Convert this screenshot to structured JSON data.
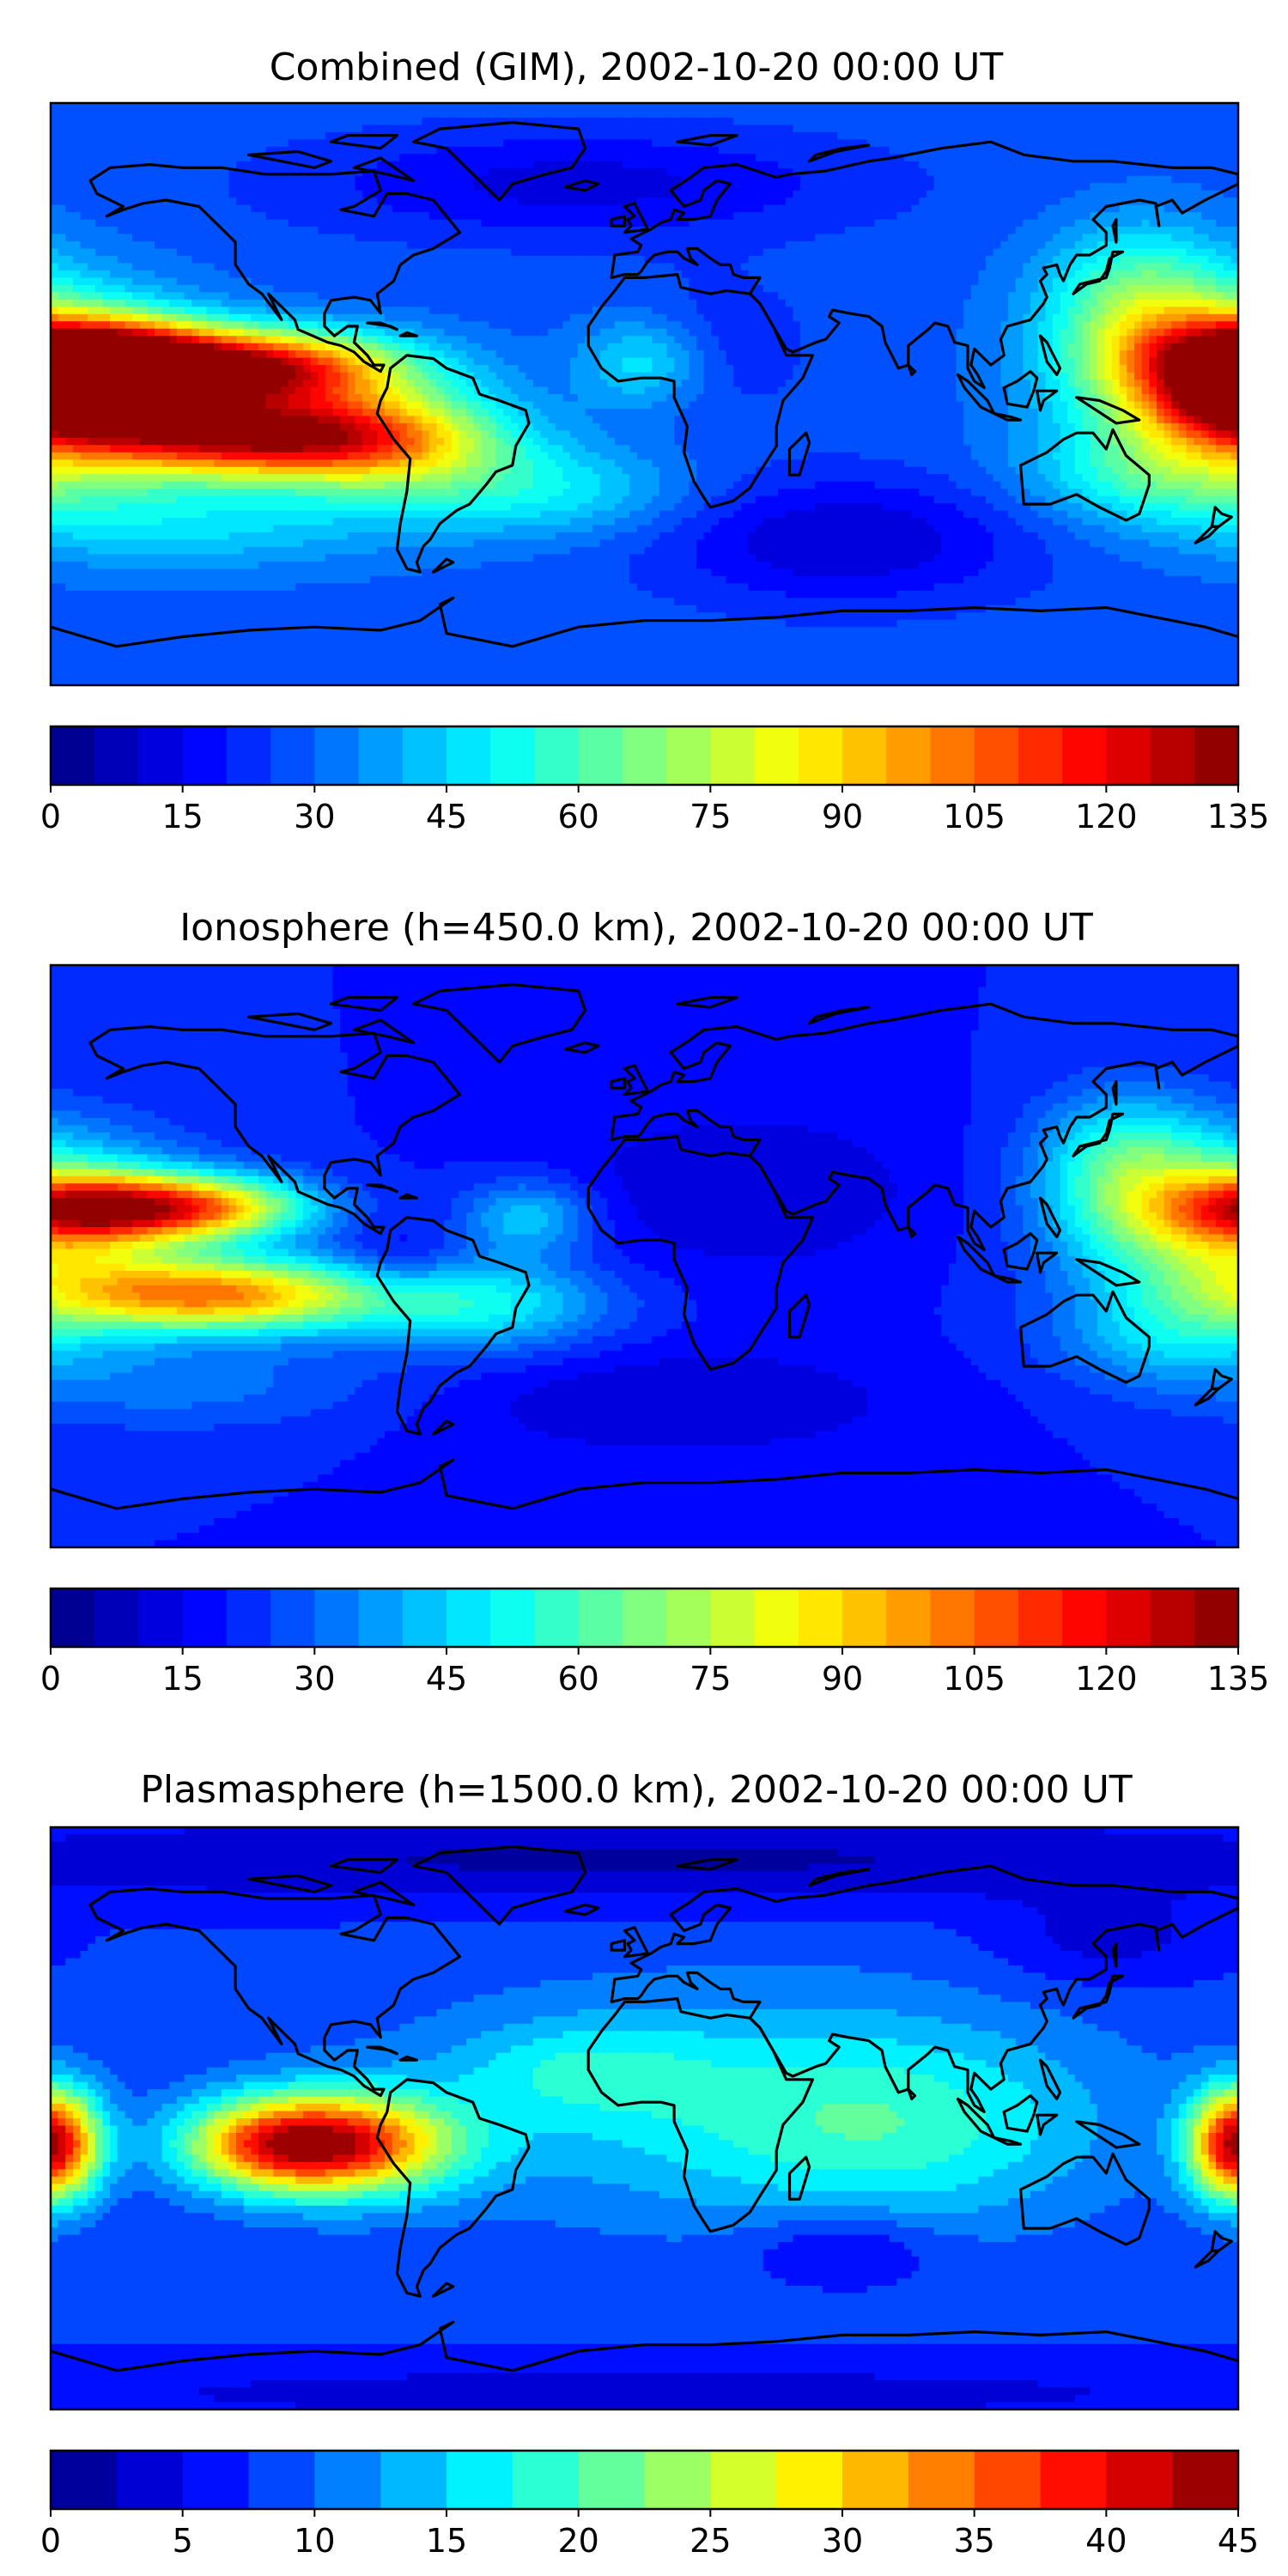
{
  "chart_data": [
    {
      "type": "map",
      "title": "Combined (GIM), 2002-10-20 00:00 UT",
      "projection": "equirectangular",
      "lon_range": [
        -180,
        180
      ],
      "lat_range": [
        -90,
        90
      ],
      "colormap": "jet",
      "colorbar": {
        "min": 0,
        "max": 135,
        "levels": 27,
        "ticks": [
          0,
          15,
          30,
          45,
          60,
          75,
          90,
          105,
          120,
          135
        ],
        "tick_labels": [
          "0",
          "15",
          "30",
          "45",
          "60",
          "75",
          "90",
          "105",
          "120",
          "135"
        ]
      },
      "background_value": 28,
      "features": [
        {
          "lon": -165,
          "lat": 12,
          "amp": 82,
          "slon": 26,
          "slat": 8
        },
        {
          "lon": -115,
          "lat": 8,
          "amp": 88,
          "slon": 30,
          "slat": 8
        },
        {
          "lon": -170,
          "lat": -2,
          "amp": 72,
          "slon": 22,
          "slat": 8
        },
        {
          "lon": -120,
          "lat": -13,
          "amp": 95,
          "slon": 35,
          "slat": 9
        },
        {
          "lon": -75,
          "lat": -15,
          "amp": 40,
          "slon": 26,
          "slat": 12
        },
        {
          "lon": 0,
          "lat": 10,
          "amp": 22,
          "slon": 14,
          "slat": 10
        },
        {
          "lon": 175,
          "lat": 5,
          "amp": 65,
          "slon": 30,
          "slat": 18
        },
        {
          "lon": 150,
          "lat": 30,
          "amp": 30,
          "slon": 20,
          "slat": 16
        },
        {
          "lon": 160,
          "lat": -25,
          "amp": 25,
          "slon": 30,
          "slat": 10
        },
        {
          "lon": -140,
          "lat": -40,
          "amp": 18,
          "slon": 45,
          "slat": 10
        },
        {
          "lon": -30,
          "lat": -30,
          "amp": 20,
          "slon": 30,
          "slat": 10
        },
        {
          "lon": 60,
          "lat": -45,
          "amp": -18,
          "slon": 40,
          "slat": 14
        },
        {
          "lon": -20,
          "lat": 65,
          "amp": -15,
          "slon": 60,
          "slat": 12
        },
        {
          "lon": 20,
          "lat": 15,
          "amp": -8,
          "slon": 20,
          "slat": 15
        }
      ]
    },
    {
      "type": "map",
      "title": "Ionosphere  (h=450.0 km), 2002-10-20 00:00 UT",
      "projection": "equirectangular",
      "lon_range": [
        -180,
        180
      ],
      "lat_range": [
        -90,
        90
      ],
      "colormap": "jet",
      "colorbar": {
        "min": 0,
        "max": 135,
        "levels": 27,
        "ticks": [
          0,
          15,
          30,
          45,
          60,
          75,
          90,
          105,
          120,
          135
        ],
        "tick_labels": [
          "0",
          "15",
          "30",
          "45",
          "60",
          "75",
          "90",
          "105",
          "120",
          "135"
        ]
      },
      "background_value": 20,
      "features": [
        {
          "lon": -165,
          "lat": 15,
          "amp": 62,
          "slon": 22,
          "slat": 7
        },
        {
          "lon": -130,
          "lat": 15,
          "amp": 58,
          "slon": 22,
          "slat": 7
        },
        {
          "lon": -130,
          "lat": -12,
          "amp": 78,
          "slon": 35,
          "slat": 8
        },
        {
          "lon": -75,
          "lat": -3,
          "amp": -10,
          "slon": 12,
          "slat": 8
        },
        {
          "lon": -50,
          "lat": -15,
          "amp": 30,
          "slon": 28,
          "slat": 10
        },
        {
          "lon": -35,
          "lat": 12,
          "amp": 25,
          "slon": 14,
          "slat": 8
        },
        {
          "lon": 175,
          "lat": 10,
          "amp": 60,
          "slon": 30,
          "slat": 18
        },
        {
          "lon": 145,
          "lat": 30,
          "amp": 28,
          "slon": 18,
          "slat": 15
        },
        {
          "lon": 160,
          "lat": -25,
          "amp": 20,
          "slon": 25,
          "slat": 10
        },
        {
          "lon": -140,
          "lat": -40,
          "amp": 12,
          "slon": 45,
          "slat": 10
        },
        {
          "lon": 10,
          "lat": -45,
          "amp": -10,
          "slon": 50,
          "slat": 12
        },
        {
          "lon": 30,
          "lat": 20,
          "amp": -10,
          "slon": 40,
          "slat": 18
        }
      ]
    },
    {
      "type": "map",
      "title": "Plasmasphere (h=1500.0 km), 2002-10-20 00:00 UT",
      "projection": "equirectangular",
      "lon_range": [
        -180,
        180
      ],
      "lat_range": [
        -90,
        90
      ],
      "colormap": "jet",
      "colorbar": {
        "min": 0,
        "max": 45,
        "levels": 18,
        "ticks": [
          0,
          5,
          10,
          15,
          20,
          25,
          30,
          35,
          40,
          45
        ],
        "tick_labels": [
          "0",
          "5",
          "10",
          "15",
          "20",
          "25",
          "30",
          "35",
          "40",
          "45"
        ]
      },
      "background_value": 8,
      "features": [
        {
          "lon": -90,
          "lat": -8,
          "amp": 26,
          "slon": 24,
          "slat": 11
        },
        {
          "lon": -115,
          "lat": -8,
          "amp": 18,
          "slon": 20,
          "slat": 10
        },
        {
          "lon": -178,
          "lat": -8,
          "amp": 18,
          "slon": 10,
          "slat": 12
        },
        {
          "lon": 178,
          "lat": -8,
          "amp": 18,
          "slon": 10,
          "slat": 12
        },
        {
          "lon": 30,
          "lat": 5,
          "amp": 8,
          "slon": 70,
          "slat": 25
        },
        {
          "lon": -20,
          "lat": 15,
          "amp": 5,
          "slon": 25,
          "slat": 10
        },
        {
          "lon": 80,
          "lat": -5,
          "amp": 6,
          "slon": 40,
          "slat": 20
        },
        {
          "lon": 60,
          "lat": -40,
          "amp": -5,
          "slon": 20,
          "slat": 8
        },
        {
          "lon": 0,
          "lat": 80,
          "amp": -6,
          "slon": 180,
          "slat": 10
        },
        {
          "lon": 0,
          "lat": -85,
          "amp": -4,
          "slon": 180,
          "slat": 8
        },
        {
          "lon": 140,
          "lat": 55,
          "amp": -4,
          "slon": 25,
          "slat": 10
        }
      ]
    }
  ]
}
